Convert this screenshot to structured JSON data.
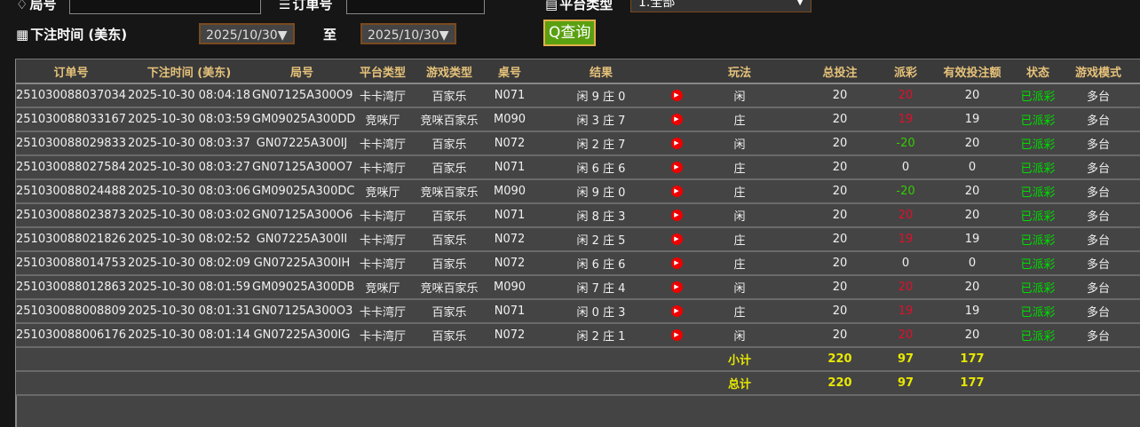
{
  "filters": {
    "round_label": "局号",
    "round_value": "",
    "order_label": "订单号",
    "order_value": "",
    "platform_label": "平台类型",
    "platform_value": "1.全部",
    "time_label": "下注时间 (美东)",
    "date_from": "2025/10/30",
    "to_label": "至",
    "date_to": "2025/10/30",
    "query_label": "查询"
  },
  "columns": [
    "订单号",
    "下注时间 (美东)",
    "局号",
    "平台类型",
    "游戏类型",
    "桌号",
    "结果",
    "",
    "玩法",
    "总投注",
    "派彩",
    "有效投注额",
    "状态",
    "游戏模式"
  ],
  "colors": {
    "header_text": "#e6c27a",
    "payout_win": "#e0102a",
    "payout_loss": "#33cc00",
    "status": "#00dd00",
    "summary": "#e8e800"
  },
  "rows": [
    [
      "251030088037034",
      "2025-10-30 08:04:18",
      "GN07125A300O9",
      "卡卡湾厅",
      "百家乐",
      "N071",
      "闲 9 庄 0",
      "闲",
      "20",
      "20",
      "20",
      "已派彩",
      "多台"
    ],
    [
      "251030088033167",
      "2025-10-30 08:03:59",
      "GM09025A300DD",
      "竞咪厅",
      "竞咪百家乐",
      "M090",
      "闲 3 庄 7",
      "庄",
      "20",
      "19",
      "19",
      "已派彩",
      "多台"
    ],
    [
      "251030088029833",
      "2025-10-30 08:03:37",
      "GN07225A300IJ",
      "卡卡湾厅",
      "百家乐",
      "N072",
      "闲 2 庄 7",
      "闲",
      "20",
      "-20",
      "20",
      "已派彩",
      "多台"
    ],
    [
      "251030088027584",
      "2025-10-30 08:03:27",
      "GN07125A300O7",
      "卡卡湾厅",
      "百家乐",
      "N071",
      "闲 6 庄 6",
      "庄",
      "20",
      "0",
      "0",
      "已派彩",
      "多台"
    ],
    [
      "251030088024488",
      "2025-10-30 08:03:06",
      "GM09025A300DC",
      "竞咪厅",
      "竞咪百家乐",
      "M090",
      "闲 9 庄 0",
      "庄",
      "20",
      "-20",
      "20",
      "已派彩",
      "多台"
    ],
    [
      "251030088023873",
      "2025-10-30 08:03:02",
      "GN07125A300O6",
      "卡卡湾厅",
      "百家乐",
      "N071",
      "闲 8 庄 3",
      "闲",
      "20",
      "20",
      "20",
      "已派彩",
      "多台"
    ],
    [
      "251030088021826",
      "2025-10-30 08:02:52",
      "GN07225A300II",
      "卡卡湾厅",
      "百家乐",
      "N072",
      "闲 2 庄 5",
      "庄",
      "20",
      "19",
      "19",
      "已派彩",
      "多台"
    ],
    [
      "251030088014753",
      "2025-10-30 08:02:09",
      "GN07225A300IH",
      "卡卡湾厅",
      "百家乐",
      "N072",
      "闲 6 庄 6",
      "庄",
      "20",
      "0",
      "0",
      "已派彩",
      "多台"
    ],
    [
      "251030088012863",
      "2025-10-30 08:01:59",
      "GM09025A300DB",
      "竞咪厅",
      "竞咪百家乐",
      "M090",
      "闲 7 庄 4",
      "闲",
      "20",
      "20",
      "20",
      "已派彩",
      "多台"
    ],
    [
      "251030088008809",
      "2025-10-30 08:01:31",
      "GN07125A300O3",
      "卡卡湾厅",
      "百家乐",
      "N071",
      "闲 0 庄 3",
      "庄",
      "20",
      "19",
      "19",
      "已派彩",
      "多台"
    ],
    [
      "251030088006176",
      "2025-10-30 08:01:14",
      "GN07225A300IG",
      "卡卡湾厅",
      "百家乐",
      "N072",
      "闲 2 庄 1",
      "闲",
      "20",
      "20",
      "20",
      "已派彩",
      "多台"
    ]
  ],
  "subtotal": {
    "label": "小计",
    "total_bet": "220",
    "payout": "97",
    "valid_bet": "177"
  },
  "total": {
    "label": "总计",
    "total_bet": "220",
    "payout": "97",
    "valid_bet": "177"
  }
}
